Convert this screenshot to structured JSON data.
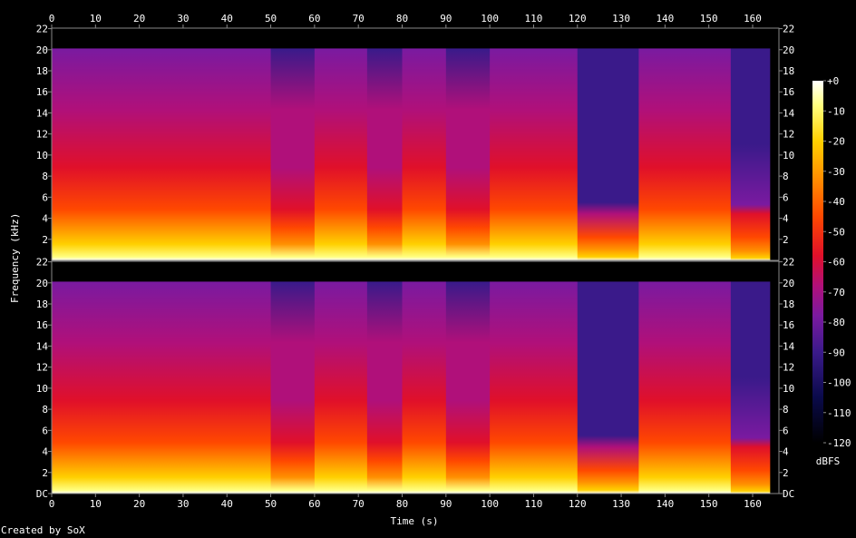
{
  "chart_data": {
    "type": "heatmap",
    "subtype": "spectrogram",
    "channels": 2,
    "xlabel": "Time (s)",
    "ylabel": "Frequency (kHz)",
    "xlim": [
      0,
      166
    ],
    "ylim_khz": [
      0,
      22.05
    ],
    "x_ticks": [
      "0",
      "10",
      "20",
      "30",
      "40",
      "50",
      "60",
      "70",
      "80",
      "90",
      "100",
      "110",
      "120",
      "130",
      "140",
      "150",
      "160"
    ],
    "y_ticks": [
      "DC",
      "2",
      "4",
      "6",
      "8",
      "10",
      "12",
      "14",
      "16",
      "18",
      "20",
      "22"
    ],
    "colorbar": {
      "label": "dBFS",
      "range": [
        -120,
        0
      ],
      "ticks": [
        "+0",
        "-10",
        "-20",
        "-30",
        "-40",
        "-50",
        "-60",
        "-70",
        "-80",
        "-90",
        "-100",
        "-110",
        "-120"
      ],
      "stops": [
        {
          "db": -120,
          "color": "#000000"
        },
        {
          "db": -105,
          "color": "#0a0a4a"
        },
        {
          "db": -90,
          "color": "#3a1a8a"
        },
        {
          "db": -78,
          "color": "#7a1aa0"
        },
        {
          "db": -68,
          "color": "#b0107a"
        },
        {
          "db": -58,
          "color": "#e0102a"
        },
        {
          "db": -45,
          "color": "#ff4800"
        },
        {
          "db": -32,
          "color": "#ff9000"
        },
        {
          "db": -20,
          "color": "#ffd000"
        },
        {
          "db": -8,
          "color": "#ffff80"
        },
        {
          "db": 0,
          "color": "#ffffff"
        }
      ]
    },
    "cutoff_khz": 20,
    "segments": [
      {
        "t": [
          0,
          19
        ],
        "level": "loud"
      },
      {
        "t": [
          19,
          50
        ],
        "level": "loud"
      },
      {
        "t": [
          50,
          60
        ],
        "level": "medium"
      },
      {
        "t": [
          60,
          72
        ],
        "level": "loud"
      },
      {
        "t": [
          72,
          80
        ],
        "level": "medium"
      },
      {
        "t": [
          80,
          90
        ],
        "level": "loud"
      },
      {
        "t": [
          90,
          100
        ],
        "level": "medium"
      },
      {
        "t": [
          100,
          120
        ],
        "level": "loud"
      },
      {
        "t": [
          120,
          134
        ],
        "level": "quiet"
      },
      {
        "t": [
          134,
          155
        ],
        "level": "loud"
      },
      {
        "t": [
          155,
          164
        ],
        "level": "fading"
      },
      {
        "t": [
          164,
          166
        ],
        "level": "silent"
      }
    ],
    "grid": false
  },
  "footer": "Created by SoX"
}
